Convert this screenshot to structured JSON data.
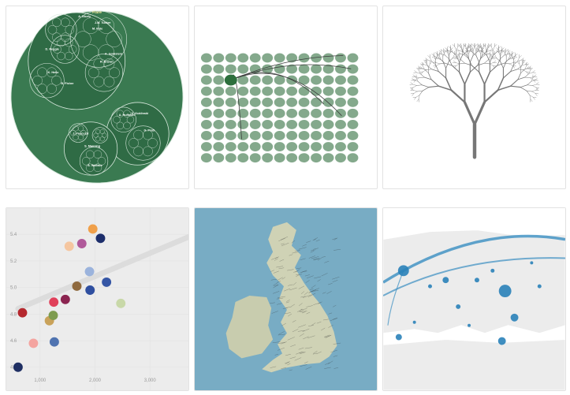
{
  "gallery": {
    "tiles": [
      {
        "id": "circle-packing",
        "top_label": "Flare",
        "labels": [
          "A. Nicely",
          "J.M. Tucker",
          "M. Kyle",
          "D. Reggie",
          "A. Goldstein",
          "K. Heitz",
          "R. Brown",
          "J. Pascuzzi",
          "A. Huffman",
          "G. Pratt",
          "S. Manning",
          "B. Fisher",
          "K. Kuklinski",
          "A. Wallace"
        ],
        "colors": {
          "fill": "#3a7a51",
          "inner": "#2f6b45",
          "stroke": "#d8e8dd"
        }
      },
      {
        "id": "node-grid",
        "rows": 10,
        "cols": 13,
        "colors": {
          "node": "#6e9a78",
          "active": "#2d6f3d",
          "link": "#3a3a3a"
        }
      },
      {
        "id": "fractal-tree",
        "colors": {
          "branch": "#777777"
        }
      },
      {
        "id": "scatter-plot",
        "chart_data": {
          "type": "scatter",
          "title": "",
          "xlabel": "",
          "ylabel": "",
          "xlim": [
            500,
            3700
          ],
          "ylim": [
            4.35,
            5.55
          ],
          "x_ticks": [
            "1,000",
            "2,000",
            "3,000"
          ],
          "x_tick_values": [
            1000,
            2000,
            3000
          ],
          "y_ticks": [
            "4.4",
            "4.6",
            "4.8",
            "5.0",
            "5.2",
            "5.4"
          ],
          "y_tick_values": [
            4.4,
            4.6,
            4.8,
            5.0,
            5.2,
            5.4
          ],
          "grid": true,
          "trend_line": {
            "x": [
              600,
              3700
            ],
            "y": [
              4.84,
              5.38
            ]
          },
          "points": [
            {
              "x": 600,
              "y": 4.4,
              "color": "#1f2f63"
            },
            {
              "x": 680,
              "y": 4.81,
              "color": "#b5282e"
            },
            {
              "x": 880,
              "y": 4.58,
              "color": "#f4a4a0"
            },
            {
              "x": 1170,
              "y": 4.75,
              "color": "#c9a25a"
            },
            {
              "x": 1240,
              "y": 4.79,
              "color": "#7e9c4f"
            },
            {
              "x": 1250,
              "y": 4.89,
              "color": "#e0405a"
            },
            {
              "x": 1260,
              "y": 4.59,
              "color": "#4f73b0"
            },
            {
              "x": 1460,
              "y": 4.91,
              "color": "#8b2450"
            },
            {
              "x": 1530,
              "y": 5.31,
              "color": "#f5c6a0"
            },
            {
              "x": 1670,
              "y": 5.01,
              "color": "#8f6a3f"
            },
            {
              "x": 1760,
              "y": 5.33,
              "color": "#b05a9a"
            },
            {
              "x": 1900,
              "y": 5.12,
              "color": "#9bb3dc"
            },
            {
              "x": 1910,
              "y": 4.98,
              "color": "#2f4fa0"
            },
            {
              "x": 1960,
              "y": 5.44,
              "color": "#f0a04a"
            },
            {
              "x": 2100,
              "y": 5.37,
              "color": "#1d2e6b"
            },
            {
              "x": 2210,
              "y": 5.04,
              "color": "#3556a5"
            },
            {
              "x": 2470,
              "y": 4.88,
              "color": "#c8d8a8"
            }
          ]
        }
      },
      {
        "id": "uk-map",
        "colors": {
          "sea": "#78acc4",
          "land": "#cfd2b5",
          "ireland": "#c8ccae",
          "roads": "#2a2a2a"
        }
      },
      {
        "id": "flow-map",
        "colors": {
          "land": "#ececec",
          "border": "#ffffff",
          "sea": "#ffffff",
          "dot": "#2a82b9",
          "flow": "#3a8fc2"
        }
      }
    ]
  }
}
